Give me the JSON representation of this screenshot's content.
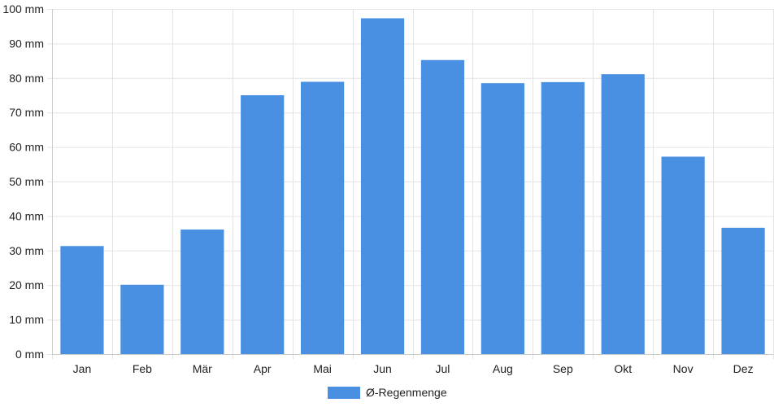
{
  "chart_data": {
    "type": "bar",
    "categories": [
      "Jan",
      "Feb",
      "Mär",
      "Apr",
      "Mai",
      "Jun",
      "Jul",
      "Aug",
      "Sep",
      "Okt",
      "Nov",
      "Dez"
    ],
    "series": [
      {
        "name": "Ø-Regenmenge",
        "values": [
          31.3,
          20.1,
          36.1,
          75.0,
          78.9,
          97.3,
          85.2,
          78.5,
          78.8,
          81.1,
          57.2,
          36.6
        ],
        "color": "#4a90e2"
      }
    ],
    "y_unit": "mm",
    "ylim": [
      0,
      100
    ],
    "y_ticks": [
      "0 mm",
      "10 mm",
      "20 mm",
      "30 mm",
      "40 mm",
      "50 mm",
      "60 mm",
      "70 mm",
      "80 mm",
      "90 mm",
      "100 mm"
    ],
    "grid": true,
    "legend_position": "bottom-center",
    "colors": {
      "grid": "#e4e4e4",
      "axis": "#cccccc",
      "text": "#222222"
    }
  }
}
